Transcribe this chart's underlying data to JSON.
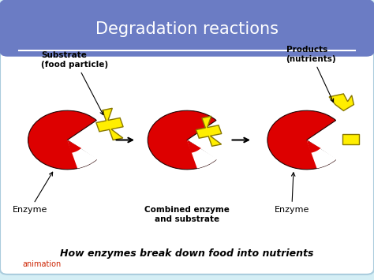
{
  "title": "Degradation reactions",
  "title_color": "white",
  "title_bg": "#6b7cc4",
  "bg_color": "#d4eef5",
  "card_bg": "white",
  "enzyme_color": "#dd0000",
  "substrate_color": "#ffee00",
  "substrate_outline": "#887700",
  "arrow_color": "black",
  "text_color": "black",
  "italic_text": "How enzymes break down food into nutrients",
  "animation_text": "animation",
  "animation_color": "#cc2200",
  "label_enzyme1": "Enzyme",
  "label_substrate": "Substrate\n(food particle)",
  "label_combined": "Combined enzyme\nand substrate",
  "label_enzyme2": "Enzyme",
  "label_products": "Products\n(nutrients)"
}
